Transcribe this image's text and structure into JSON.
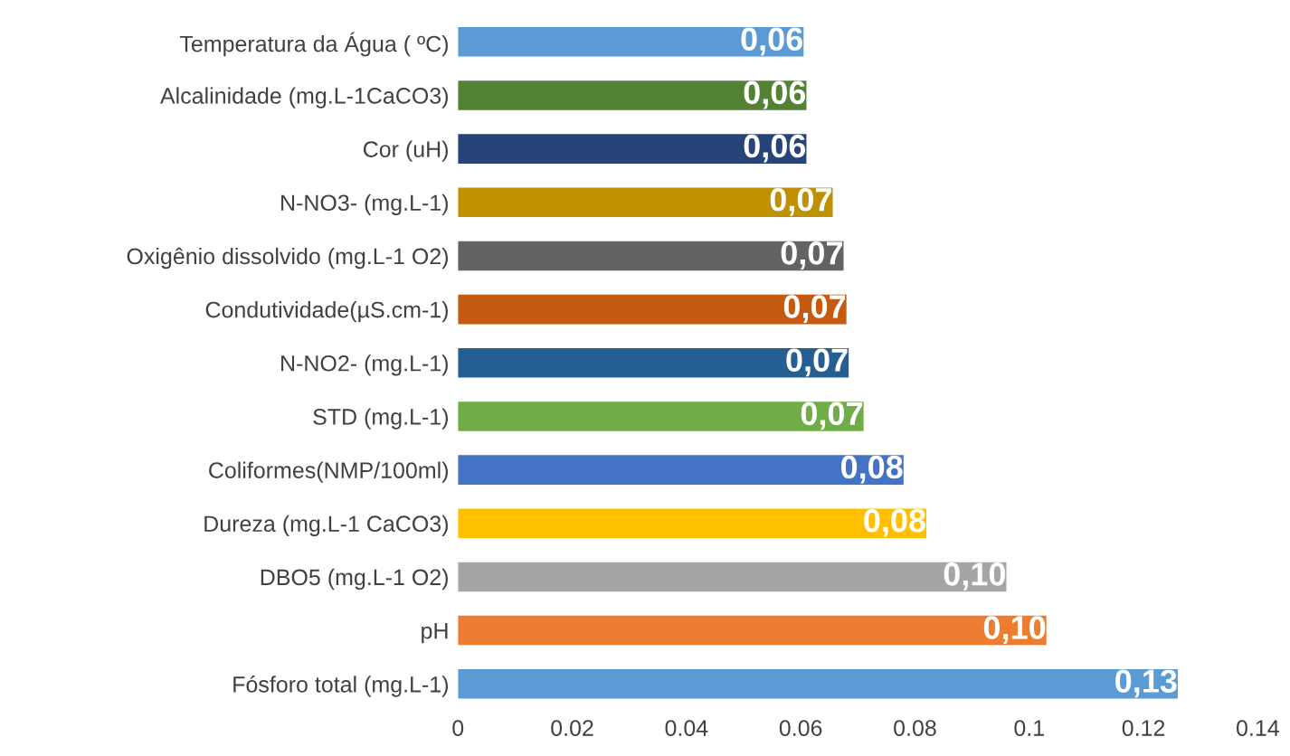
{
  "chart_data": {
    "type": "bar",
    "orientation": "horizontal",
    "categories": [
      "Temperatura da Água ( ºC)",
      "Alcalinidade (mg.L-1CaCO3)",
      "Cor (uH)",
      "N-NO3- (mg.L-1)",
      "Oxigênio dissolvido (mg.L-1 O2)",
      "Condutividade(µS.cm-1)",
      "N-NO2- (mg.L-1)",
      "STD (mg.L-1)",
      "Coliformes(NMP/100ml)",
      "Dureza (mg.L-1 CaCO3)",
      "DBO5 (mg.L-1 O2)",
      "pH",
      "Fósforo total (mg.L-1)"
    ],
    "values": [
      0.0605,
      0.061,
      0.061,
      0.0656,
      0.0675,
      0.068,
      0.0684,
      0.071,
      0.078,
      0.082,
      0.096,
      0.103,
      0.126
    ],
    "value_labels": [
      "0,06",
      "0,06",
      "0,06",
      "0,07",
      "0,07",
      "0,07",
      "0,07",
      "0,07",
      "0,08",
      "0,08",
      "0,10",
      "0,10",
      "0,13"
    ],
    "colors": [
      "#5b9bd5",
      "#548235",
      "#264478",
      "#bf9000",
      "#636363",
      "#c55a11",
      "#255e91",
      "#70ad47",
      "#4472c4",
      "#ffc000",
      "#a5a5a5",
      "#ed7d31",
      "#5b9bd5"
    ],
    "xlim": [
      0,
      0.14
    ],
    "xticks": [
      0,
      0.02,
      0.04,
      0.06,
      0.08,
      0.1,
      0.12,
      0.14
    ],
    "grid": false,
    "legend": false
  }
}
